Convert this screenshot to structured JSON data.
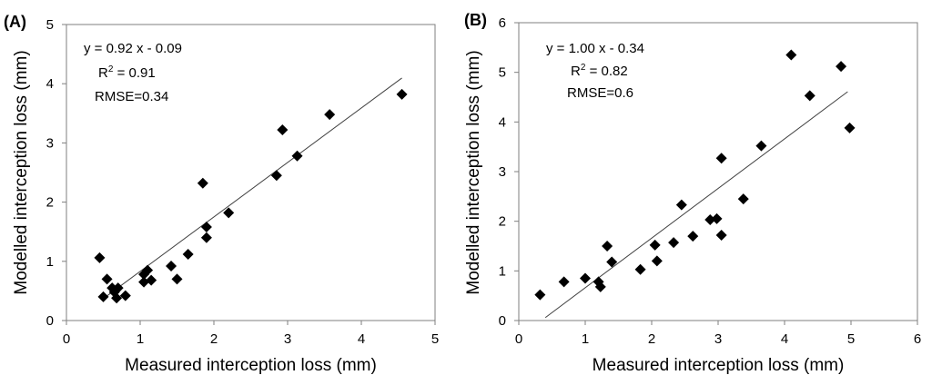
{
  "chart_data": [
    {
      "type": "scatter",
      "panel_label": "(A)",
      "xlabel": "Measured interception loss (mm)",
      "ylabel": "Modelled interception loss (mm)",
      "xlim": [
        0,
        5
      ],
      "ylim": [
        0,
        5
      ],
      "xticks": [
        "0",
        "1",
        "2",
        "3",
        "4",
        "5"
      ],
      "yticks": [
        "0",
        "1",
        "2",
        "3",
        "4",
        "5"
      ],
      "grid": false,
      "marker": "diamond",
      "marker_color": "#000000",
      "annotation": {
        "equation": "y = 0.92 x - 0.09",
        "r2_prefix": "R",
        "r2_sup": "2",
        "r2_value": " = 0.91",
        "rmse": "RMSE=0.34"
      },
      "trendline": {
        "slope": 0.92,
        "intercept": -0.09,
        "x_range": [
          0.48,
          4.55
        ]
      },
      "points": [
        [
          0.45,
          1.06
        ],
        [
          0.5,
          0.4
        ],
        [
          0.55,
          0.7
        ],
        [
          0.62,
          0.55
        ],
        [
          0.65,
          0.48
        ],
        [
          0.68,
          0.38
        ],
        [
          0.7,
          0.55
        ],
        [
          0.8,
          0.42
        ],
        [
          1.05,
          0.78
        ],
        [
          1.05,
          0.65
        ],
        [
          1.1,
          0.85
        ],
        [
          1.15,
          0.68
        ],
        [
          1.42,
          0.92
        ],
        [
          1.5,
          0.7
        ],
        [
          1.65,
          1.12
        ],
        [
          1.85,
          2.32
        ],
        [
          1.9,
          1.58
        ],
        [
          1.9,
          1.4
        ],
        [
          2.2,
          1.82
        ],
        [
          2.85,
          2.45
        ],
        [
          2.93,
          3.22
        ],
        [
          3.13,
          2.78
        ],
        [
          3.57,
          3.48
        ],
        [
          4.55,
          3.82
        ]
      ]
    },
    {
      "type": "scatter",
      "panel_label": "(B)",
      "xlabel": "Measured interception loss (mm)",
      "ylabel": "Modelled interception loss (mm)",
      "xlim": [
        0,
        6
      ],
      "ylim": [
        0,
        6
      ],
      "xticks": [
        "0",
        "1",
        "2",
        "3",
        "4",
        "5",
        "6"
      ],
      "yticks": [
        "0",
        "1",
        "2",
        "3",
        "4",
        "5",
        "6"
      ],
      "grid": false,
      "marker": "diamond",
      "marker_color": "#000000",
      "annotation": {
        "equation": "y = 1.00 x - 0.34",
        "r2_prefix": "R",
        "r2_sup": "2",
        "r2_value": " = 0.82",
        "rmse": "RMSE=0.6"
      },
      "trendline": {
        "slope": 1.0,
        "intercept": -0.34,
        "x_range": [
          0.4,
          4.95
        ]
      },
      "points": [
        [
          0.32,
          0.52
        ],
        [
          0.68,
          0.78
        ],
        [
          1.0,
          0.85
        ],
        [
          1.2,
          0.78
        ],
        [
          1.23,
          0.68
        ],
        [
          1.33,
          1.5
        ],
        [
          1.4,
          1.18
        ],
        [
          1.83,
          1.03
        ],
        [
          2.05,
          1.52
        ],
        [
          2.08,
          1.2
        ],
        [
          2.33,
          1.57
        ],
        [
          2.45,
          2.33
        ],
        [
          2.62,
          1.7
        ],
        [
          2.88,
          2.03
        ],
        [
          2.98,
          2.05
        ],
        [
          3.05,
          1.72
        ],
        [
          3.05,
          3.27
        ],
        [
          3.38,
          2.45
        ],
        [
          3.65,
          3.52
        ],
        [
          4.1,
          5.35
        ],
        [
          4.38,
          4.53
        ],
        [
          4.85,
          5.12
        ],
        [
          4.98,
          3.88
        ]
      ]
    }
  ]
}
